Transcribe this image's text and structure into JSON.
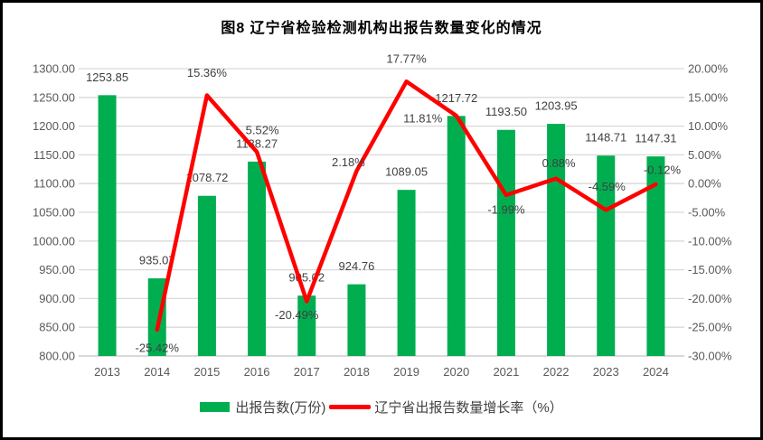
{
  "title": "图8  辽宁省检验检测机构出报告数量变化的情况",
  "colors": {
    "bar": "#00AE50",
    "line": "#FF0000",
    "gridline": "#D9D9D9",
    "axis_text": "#595959",
    "data_label": "#404040",
    "title_text": "#000000",
    "background": "#FFFFFF",
    "frame_border": "#000000"
  },
  "legend": {
    "items": [
      {
        "swatch": "bar",
        "label": "出报告数(万份)"
      },
      {
        "swatch": "line",
        "label": "辽宁省出报告数量增长率（%）"
      }
    ]
  },
  "chart_data": {
    "type": "combo",
    "categories": [
      "2013",
      "2014",
      "2015",
      "2016",
      "2017",
      "2018",
      "2019",
      "2020",
      "2021",
      "2022",
      "2023",
      "2024"
    ],
    "series": [
      {
        "name": "出报告数(万份)",
        "type": "bar",
        "axis": "left",
        "color": "#00AE50",
        "values": [
          1253.85,
          935.07,
          1078.72,
          1138.27,
          905.02,
          924.76,
          1089.05,
          1217.72,
          1193.5,
          1203.95,
          1148.71,
          1147.31
        ],
        "labels": [
          "1253.85",
          "935.07",
          "1078.72",
          "1138.27",
          "905.02",
          "924.76",
          "1089.05",
          "1217.72",
          "1193.50",
          "1203.95",
          "1148.71",
          "1147.31"
        ]
      },
      {
        "name": "辽宁省出报告数量增长率（%）",
        "type": "line",
        "axis": "right",
        "color": "#FF0000",
        "values": [
          null,
          -25.42,
          15.36,
          5.52,
          -20.49,
          2.18,
          17.77,
          11.81,
          -1.99,
          0.88,
          -4.59,
          -0.12
        ],
        "labels": [
          null,
          "-25.42%",
          "15.36%",
          "5.52%",
          "-20.49%",
          "2.18%",
          "17.77%",
          "11.81%",
          "-1.99%",
          "0.88%",
          "-4.59%",
          "-0.12%"
        ]
      }
    ],
    "axes": {
      "left": {
        "min": 800,
        "max": 1300,
        "step": 50,
        "ticks": [
          "1300.00",
          "1250.00",
          "1200.00",
          "1150.00",
          "1100.00",
          "1050.00",
          "1000.00",
          "950.00",
          "900.00",
          "850.00",
          "800.00"
        ]
      },
      "right": {
        "min": -30,
        "max": 20,
        "step": 5,
        "ticks": [
          "20.00%",
          "15.00%",
          "10.00%",
          "5.00%",
          "0.00%",
          "-5.00%",
          "-10.00%",
          "-15.00%",
          "-20.00%",
          "-25.00%",
          "-30.00%"
        ]
      }
    },
    "grid": "horizontal",
    "legend_position": "bottom",
    "layout_hints": {
      "line_label_offsets": [
        null,
        [
          0,
          20
        ],
        [
          0,
          -25
        ],
        [
          6,
          -24
        ],
        [
          -11,
          15
        ],
        [
          -9,
          -10
        ],
        [
          0,
          -25
        ],
        [
          -37,
          3
        ],
        [
          0,
          16
        ],
        [
          3,
          -17
        ],
        [
          1,
          -26
        ],
        [
          7,
          -16
        ]
      ],
      "bar_label_gap": 20
    }
  }
}
